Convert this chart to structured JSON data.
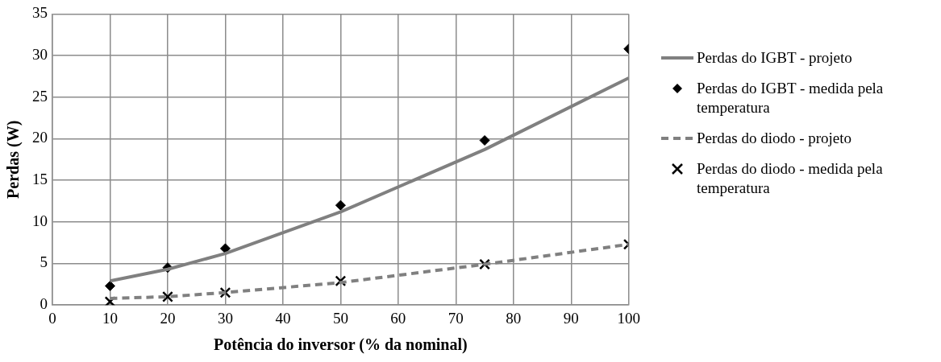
{
  "chart_data": {
    "type": "line",
    "xlabel": "Potência do inversor (% da nominal)",
    "ylabel": "Perdas (W)",
    "x": [
      10,
      20,
      30,
      50,
      75,
      100
    ],
    "xlim": [
      0,
      100
    ],
    "xticks": [
      0,
      10,
      20,
      30,
      40,
      50,
      60,
      70,
      80,
      90,
      100
    ],
    "ylim": [
      0,
      35
    ],
    "yticks": [
      0,
      5,
      10,
      15,
      20,
      25,
      30,
      35
    ],
    "grid": true,
    "legend": "right",
    "series": [
      {
        "name": "Perdas do IGBT - projeto",
        "color": "#808080",
        "marker": "none",
        "line_style": "solid",
        "values": [
          2.9,
          4.3,
          6.2,
          11.2,
          18.7,
          27.3
        ]
      },
      {
        "name": "Perdas do IGBT - medida pela temperatura",
        "type": "scatter",
        "color": "#000000",
        "marker": "diamond",
        "values": [
          2.3,
          4.5,
          6.8,
          12.0,
          19.8,
          30.8
        ]
      },
      {
        "name": "Perdas do diodo - projeto",
        "color": "#808080",
        "marker": "none",
        "line_style": "dashed",
        "values": [
          0.8,
          1.0,
          1.5,
          2.7,
          4.9,
          7.3
        ]
      },
      {
        "name": "Perdas do diodo - medida pela temperatura",
        "type": "scatter",
        "color": "#000000",
        "marker": "cross",
        "values": [
          0.4,
          1.0,
          1.5,
          2.9,
          4.9,
          7.3
        ]
      }
    ]
  }
}
